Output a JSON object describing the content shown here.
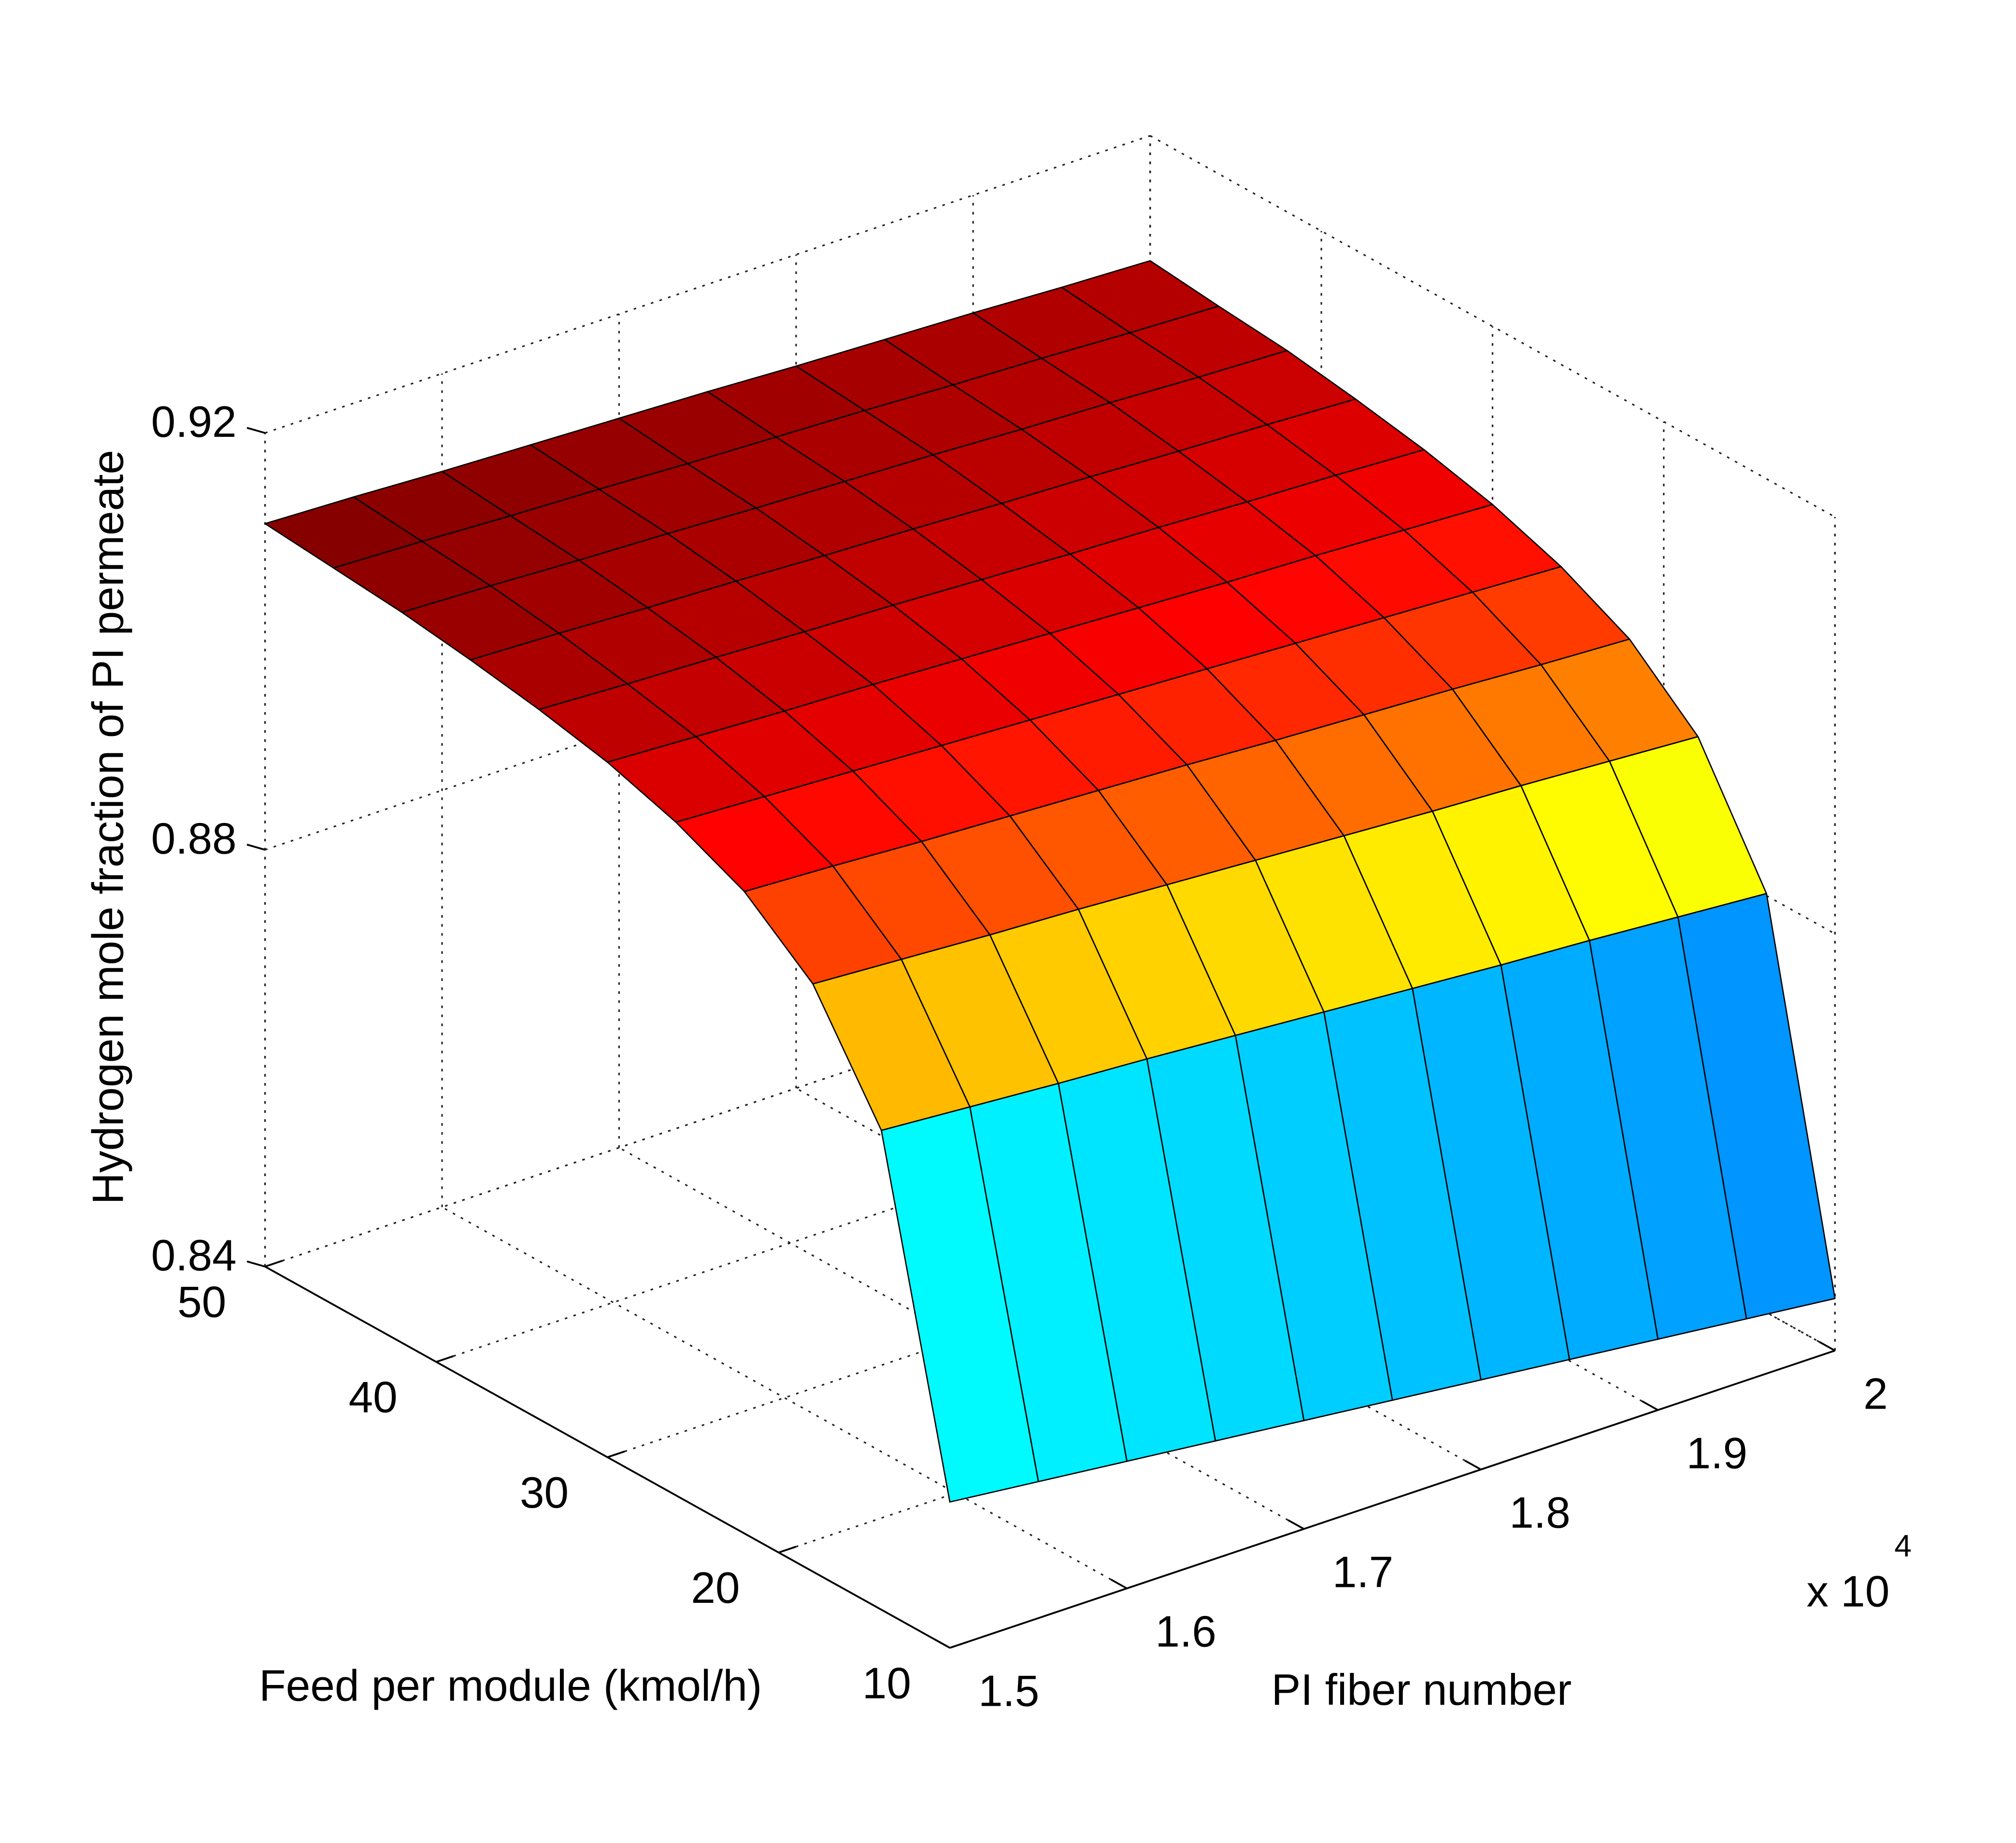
{
  "chart_data": {
    "type": "surface",
    "x_label": "PI fiber number",
    "y_label": "Feed per module (kmol/h)",
    "z_label": "Hydrogen mole fraction of PI permeate",
    "x_multiplier": {
      "base": "x 10",
      "exponent": "4"
    },
    "x": [
      15000,
      15500,
      16000,
      16500,
      17000,
      17500,
      18000,
      18500,
      19000,
      19500,
      20000
    ],
    "y": [
      10,
      14,
      18,
      22,
      26,
      30,
      34,
      38,
      42,
      46,
      50
    ],
    "z": [
      [
        0.854,
        0.8531,
        0.8522,
        0.8513,
        0.8504,
        0.8495,
        0.8486,
        0.8477,
        0.8468,
        0.8459,
        0.845
      ],
      [
        0.886,
        0.8854,
        0.8848,
        0.8843,
        0.8837,
        0.8831,
        0.8825,
        0.8819,
        0.8814,
        0.8808,
        0.8802
      ],
      [
        0.8964,
        0.8959,
        0.8954,
        0.895,
        0.8945,
        0.894,
        0.8935,
        0.893,
        0.8926,
        0.8921,
        0.8916
      ],
      [
        0.9016,
        0.9012,
        0.9007,
        0.9003,
        0.8999,
        0.8995,
        0.899,
        0.8986,
        0.8982,
        0.8977,
        0.8973
      ],
      [
        0.9046,
        0.9042,
        0.9038,
        0.9034,
        0.903,
        0.9026,
        0.9022,
        0.9018,
        0.9014,
        0.901,
        0.9006
      ],
      [
        0.9067,
        0.9063,
        0.9059,
        0.9056,
        0.9052,
        0.9048,
        0.9044,
        0.904,
        0.9037,
        0.9033,
        0.9029
      ],
      [
        0.9081,
        0.9077,
        0.9074,
        0.907,
        0.9067,
        0.9063,
        0.9059,
        0.9056,
        0.9052,
        0.9049,
        0.9045
      ],
      [
        0.9092,
        0.9089,
        0.9085,
        0.9082,
        0.9078,
        0.9075,
        0.9071,
        0.9068,
        0.9064,
        0.9061,
        0.9057
      ],
      [
        0.9101,
        0.9098,
        0.9094,
        0.9091,
        0.9087,
        0.9084,
        0.9081,
        0.9077,
        0.9074,
        0.907,
        0.9067
      ],
      [
        0.9107,
        0.9104,
        0.91,
        0.9097,
        0.9093,
        0.909,
        0.9087,
        0.9083,
        0.908,
        0.9076,
        0.9073
      ],
      [
        0.9113,
        0.911,
        0.9106,
        0.9103,
        0.91,
        0.9097,
        0.9093,
        0.909,
        0.9087,
        0.9083,
        0.908
      ]
    ],
    "xlim": [
      15000,
      20000
    ],
    "ylim": [
      10,
      50
    ],
    "zlim": [
      0.84,
      0.92
    ],
    "xticks": [
      {
        "value": 15000,
        "label": "1.5"
      },
      {
        "value": 16000,
        "label": "1.6"
      },
      {
        "value": 17000,
        "label": "1.7"
      },
      {
        "value": 18000,
        "label": "1.8"
      },
      {
        "value": 19000,
        "label": "1.9"
      },
      {
        "value": 20000,
        "label": "2"
      }
    ],
    "yticks": [
      10,
      20,
      30,
      40,
      50
    ],
    "zticks": [
      0.84,
      0.88,
      0.92
    ],
    "colormap": "jet",
    "grid": true
  }
}
